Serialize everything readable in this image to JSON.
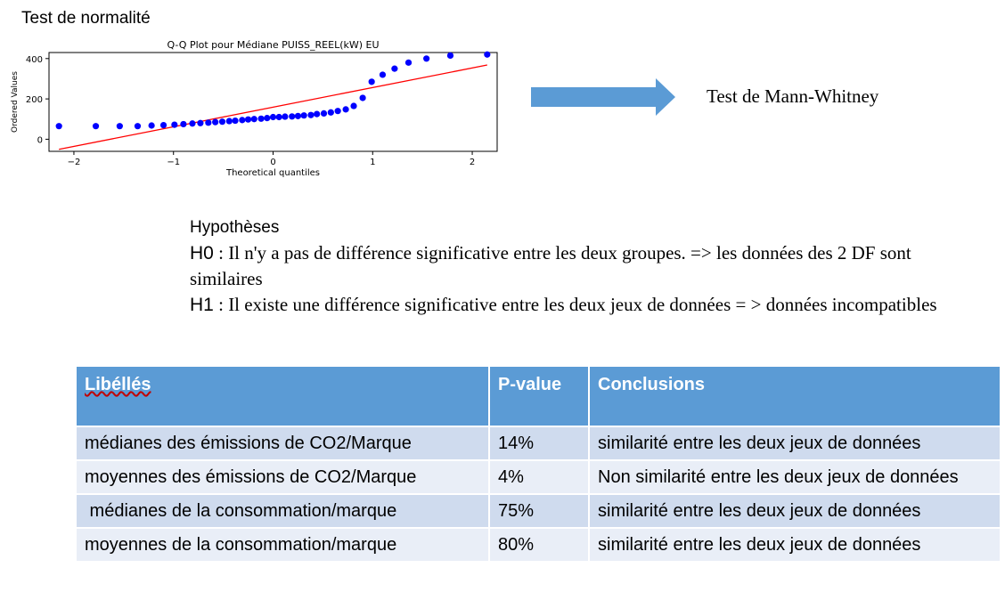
{
  "heading": "Test de normalité",
  "chart_data": {
    "type": "scatter",
    "title": "Q-Q Plot pour Médiane PUISS_REEL(kW) EU",
    "xlabel": "Theoretical quantiles",
    "ylabel": "Ordered Values",
    "xlim": [
      -2.25,
      2.25
    ],
    "ylim": [
      -60,
      430
    ],
    "xticks": [
      -2,
      -1,
      0,
      1,
      2
    ],
    "yticks": [
      0,
      200,
      400
    ],
    "xtick_labels": [
      "−2",
      "−1",
      "0",
      "1",
      "2"
    ],
    "ytick_labels": [
      "0",
      "200",
      "400"
    ],
    "points_color": "#0000ff",
    "fit_color": "#ff0000",
    "fit_line": {
      "x": [
        -2.15,
        2.15
      ],
      "y": [
        -50,
        368
      ]
    },
    "series": [
      {
        "x": [
          -2.15,
          -1.78,
          -1.54,
          -1.36,
          -1.22,
          -1.1,
          -0.99,
          -0.9,
          -0.81,
          -0.73,
          -0.65,
          -0.58,
          -0.51,
          -0.44,
          -0.38,
          -0.31,
          -0.25,
          -0.19,
          -0.12,
          -0.06,
          0.0,
          0.06,
          0.12,
          0.19,
          0.25,
          0.31,
          0.38,
          0.44,
          0.51,
          0.58,
          0.65,
          0.73,
          0.81,
          0.9,
          0.99,
          1.1,
          1.22,
          1.36,
          1.54,
          1.78,
          2.15
        ],
        "y": [
          65,
          65,
          65,
          65,
          68,
          70,
          72,
          75,
          78,
          80,
          82,
          85,
          87,
          90,
          92,
          95,
          98,
          100,
          102,
          105,
          110,
          110,
          112,
          113,
          115,
          118,
          120,
          125,
          128,
          133,
          140,
          148,
          165,
          205,
          285,
          320,
          350,
          380,
          400,
          415,
          420
        ]
      }
    ]
  },
  "arrow_color": "#5b9bd5",
  "mann_whitney": "Test de Mann-Whitney",
  "hypotheses": {
    "title": "Hypothèses",
    "h0_prefix": "H0",
    "h0_text": " : Il n'y a pas de différence significative entre les deux groupes. => les données des 2 DF sont similaires",
    "h1_prefix": "H1",
    "h1_text": " : Il existe une différence significative entre les deux jeux de données = > données incompatibles"
  },
  "table": {
    "header_color": "#5b9bd5",
    "headers": [
      "Libéllés",
      "P-value",
      "Conclusions"
    ],
    "rows": [
      [
        "médianes des émissions de CO2/Marque",
        "14%",
        "similarité entre les deux jeux de données"
      ],
      [
        "moyennes des émissions de CO2/Marque",
        "4%",
        "Non similarité entre les deux jeux de données"
      ],
      [
        " médianes de la consommation/marque",
        "75%",
        "similarité entre les deux jeux de données"
      ],
      [
        "moyennes de la consommation/marque",
        "80%",
        "similarité entre les deux jeux de données"
      ]
    ]
  }
}
